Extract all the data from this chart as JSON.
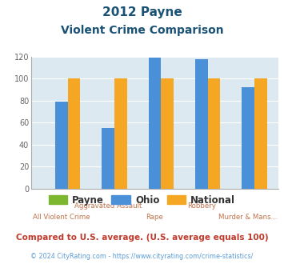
{
  "title_line1": "2012 Payne",
  "title_line2": "Violent Crime Comparison",
  "categories": [
    "All Violent Crime",
    "Aggravated Assault",
    "Rape",
    "Robbery",
    "Murder & Mans..."
  ],
  "cat_top": [
    "",
    "Aggravated Assault",
    "",
    "Robbery",
    ""
  ],
  "cat_bot": [
    "All Violent Crime",
    "",
    "Rape",
    "",
    "Murder & Mans..."
  ],
  "payne": [
    0,
    0,
    0,
    0,
    0
  ],
  "ohio": [
    79,
    55,
    119,
    118,
    92
  ],
  "national": [
    100,
    100,
    100,
    100,
    100
  ],
  "colors": {
    "payne": "#7db72f",
    "ohio": "#4a90d9",
    "national": "#f5a623"
  },
  "ylim": [
    0,
    120
  ],
  "yticks": [
    0,
    20,
    40,
    60,
    80,
    100,
    120
  ],
  "title_color": "#1a5276",
  "xlabel_color": "#c0724a",
  "legend_labels": [
    "Payne",
    "Ohio",
    "National"
  ],
  "footnote1": "Compared to U.S. average. (U.S. average equals 100)",
  "footnote2": "© 2024 CityRating.com - https://www.cityrating.com/crime-statistics/",
  "footnote1_color": "#c0392b",
  "footnote2_color": "#5b9bd5",
  "bg_color": "#dce9f0",
  "fig_bg": "#ffffff"
}
